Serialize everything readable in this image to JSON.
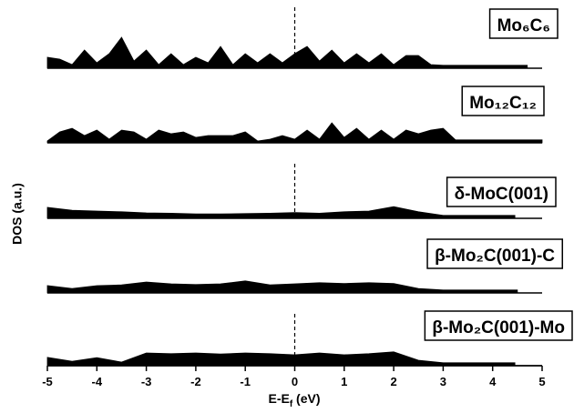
{
  "chart_data": {
    "type": "area",
    "x_label": [
      "E-E",
      "f",
      " (eV)"
    ],
    "y_label": "DOS (a.u.)",
    "xlim": [
      -5,
      5
    ],
    "xticks": [
      -5,
      -4,
      -3,
      -2,
      -1,
      0,
      1,
      2,
      3,
      4,
      5
    ],
    "ylim": [
      0,
      10
    ],
    "color": "#000000",
    "series": [
      {
        "name": "Mo₆C₆",
        "dashed_zero": true,
        "x": [
          -5,
          -4.75,
          -4.5,
          -4.25,
          -4,
          -3.75,
          -3.5,
          -3.25,
          -3,
          -2.75,
          -2.5,
          -2.25,
          -2,
          -1.75,
          -1.5,
          -1.25,
          -1,
          -0.75,
          -0.5,
          -0.25,
          0,
          0.25,
          0.5,
          0.75,
          1,
          1.25,
          1.5,
          1.75,
          2,
          2.25,
          2.5,
          2.75,
          3,
          4.7
        ],
        "values": [
          3,
          2.5,
          1,
          5,
          1.5,
          4,
          8.5,
          2,
          5,
          1,
          4,
          1,
          3,
          1.5,
          6,
          1,
          4,
          1.5,
          4,
          1.5,
          4,
          6,
          2,
          5,
          1.5,
          4,
          1.5,
          4,
          1,
          3.5,
          3.5,
          1,
          0.8,
          0.8
        ]
      },
      {
        "name": "Mo₁₂C₁₂",
        "dashed_zero": false,
        "x": [
          -5,
          -4.75,
          -4.5,
          -4.25,
          -4,
          -3.75,
          -3.5,
          -3.25,
          -3,
          -2.75,
          -2.5,
          -2.25,
          -2,
          -1.75,
          -1.5,
          -1.25,
          -1,
          -0.75,
          -0.5,
          -0.25,
          0,
          0.25,
          0.5,
          0.75,
          1,
          1.25,
          1.5,
          1.75,
          2,
          2.25,
          2.5,
          2.75,
          3,
          3.25,
          5
        ],
        "values": [
          0.5,
          3,
          4,
          2,
          3.5,
          1,
          3.5,
          3,
          1,
          3.5,
          2.5,
          3,
          1.5,
          2,
          2,
          2,
          3,
          0.5,
          1,
          2,
          1,
          3.5,
          1,
          5.5,
          1.5,
          4,
          1,
          3.5,
          1,
          3.5,
          2.5,
          3.5,
          4,
          0.8,
          0.8
        ]
      },
      {
        "name": "δ-MoC(001)",
        "dashed_zero": true,
        "x": [
          -5,
          -4.5,
          -4,
          -3.5,
          -3,
          -2.5,
          -2,
          -1.5,
          -1,
          -0.5,
          0,
          0.5,
          1,
          1.5,
          2,
          2.5,
          3,
          4.45
        ],
        "values": [
          3,
          2.2,
          2,
          1.8,
          1.5,
          1.4,
          1.2,
          1.2,
          1.3,
          1.4,
          1.6,
          1.4,
          1.8,
          2,
          3.2,
          1.8,
          0.8,
          0.8
        ]
      },
      {
        "name": "β-Mo₂C(001)-C",
        "dashed_zero": false,
        "x": [
          -5,
          -4.5,
          -4,
          -3.5,
          -3,
          -2.5,
          -2,
          -1.5,
          -1,
          -0.5,
          0,
          0.5,
          1,
          1.5,
          2,
          2.5,
          3,
          4.5
        ],
        "values": [
          2,
          1.2,
          2,
          2.2,
          3,
          2.5,
          2.3,
          2.5,
          3.3,
          2.2,
          2.5,
          2.8,
          2.6,
          2.8,
          2.6,
          1.2,
          0.8,
          0.8
        ]
      },
      {
        "name": "β-Mo₂C(001)-Mo",
        "dashed_zero": true,
        "x": [
          -5,
          -4.5,
          -4,
          -3.5,
          -3,
          -2.5,
          -2,
          -1.5,
          -1,
          -0.5,
          0,
          0.5,
          1,
          1.5,
          2,
          2.5,
          3,
          4.45
        ],
        "values": [
          2.3,
          1.2,
          2.2,
          1,
          3.5,
          3.3,
          3.5,
          3.2,
          3.5,
          3.3,
          3,
          3.5,
          3,
          3.3,
          3.8,
          1.5,
          0.8,
          0.8
        ]
      }
    ]
  }
}
